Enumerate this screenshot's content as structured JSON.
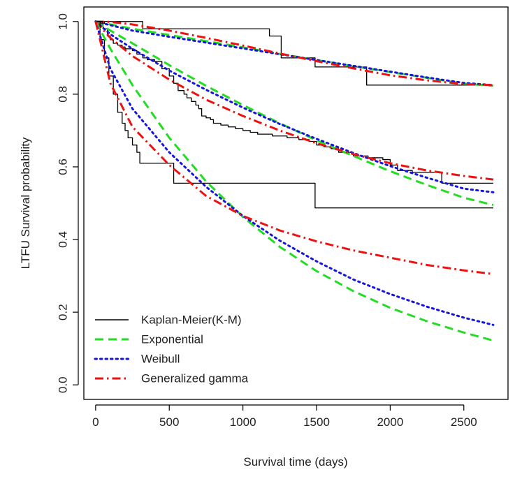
{
  "chart_data": {
    "type": "line",
    "title": "",
    "xlabel": "Survival time (days)",
    "ylabel": "LTFU Survival probability",
    "xlim": [
      -80,
      2800
    ],
    "ylim": [
      -0.04,
      1.04
    ],
    "x_ticks": [
      0,
      500,
      1000,
      1500,
      2000,
      2500
    ],
    "x_tick_labels": [
      "0",
      "500",
      "1000",
      "1500",
      "2000",
      "2500"
    ],
    "y_ticks": [
      0.0,
      0.2,
      0.4,
      0.6,
      0.8,
      1.0
    ],
    "y_tick_labels": [
      "0.0",
      "0.2",
      "0.4",
      "0.6",
      "0.8",
      "1.0"
    ],
    "grid": false,
    "legend_position": "bottom-left",
    "legend": [
      {
        "label": "Kaplan-Meier(K-M)",
        "style": "solid",
        "color": "#000000"
      },
      {
        "label": "Exponential",
        "style": "dashed",
        "color": "#22dd22"
      },
      {
        "label": "Weibull",
        "style": "dotted",
        "color": "#1515dd"
      },
      {
        "label": "Generalized gamma",
        "style": "dashdot",
        "color": "#ee1111"
      }
    ],
    "series": [
      {
        "group": "top",
        "style": "km",
        "color": "#000000",
        "x": [
          0,
          20,
          40,
          60,
          300,
          320,
          1160,
          1180,
          1240,
          1260,
          1470,
          1490,
          1820,
          1840,
          2700
        ],
        "y": [
          1.0,
          0.995,
          0.995,
          1.0,
          1.0,
          0.98,
          0.98,
          0.96,
          0.96,
          0.9,
          0.9,
          0.875,
          0.875,
          0.825,
          0.825
        ]
      },
      {
        "group": "top",
        "style": "exponential",
        "color": "#22dd22",
        "x": [
          0,
          250,
          500,
          750,
          1000,
          1250,
          1500,
          1750,
          2000,
          2250,
          2500,
          2700
        ],
        "y": [
          1.0,
          0.98,
          0.963,
          0.946,
          0.929,
          0.911,
          0.894,
          0.877,
          0.861,
          0.845,
          0.829,
          0.823
        ]
      },
      {
        "group": "top",
        "style": "weibull",
        "color": "#1515dd",
        "x": [
          0,
          250,
          500,
          750,
          1000,
          1250,
          1500,
          1750,
          2000,
          2250,
          2500,
          2700
        ],
        "y": [
          1.0,
          0.975,
          0.958,
          0.942,
          0.926,
          0.91,
          0.894,
          0.878,
          0.862,
          0.846,
          0.831,
          0.825
        ]
      },
      {
        "group": "top",
        "style": "gengamma",
        "color": "#ee1111",
        "x": [
          0,
          100,
          250,
          500,
          750,
          1000,
          1250,
          1500,
          1750,
          2000,
          2250,
          2500,
          2700
        ],
        "y": [
          1.0,
          0.999,
          0.992,
          0.975,
          0.955,
          0.934,
          0.912,
          0.891,
          0.871,
          0.852,
          0.838,
          0.828,
          0.825
        ]
      },
      {
        "group": "middle",
        "style": "km",
        "color": "#000000",
        "x": [
          0,
          50,
          80,
          100,
          120,
          150,
          180,
          200,
          250,
          280,
          320,
          350,
          400,
          450,
          500,
          530,
          560,
          600,
          620,
          650,
          680,
          700,
          720,
          750,
          780,
          800,
          850,
          900,
          950,
          1000,
          1050,
          1100,
          1200,
          1300,
          1380,
          1450,
          1500,
          1550,
          1600,
          1650,
          1750,
          1850,
          1950,
          2000,
          2050,
          2150,
          2350,
          2700
        ],
        "y": [
          1.0,
          0.98,
          0.96,
          0.95,
          0.94,
          0.935,
          0.93,
          0.925,
          0.92,
          0.91,
          0.9,
          0.895,
          0.89,
          0.87,
          0.85,
          0.83,
          0.81,
          0.8,
          0.79,
          0.78,
          0.77,
          0.76,
          0.74,
          0.735,
          0.73,
          0.72,
          0.715,
          0.71,
          0.705,
          0.7,
          0.695,
          0.69,
          0.685,
          0.68,
          0.675,
          0.67,
          0.66,
          0.655,
          0.65,
          0.64,
          0.63,
          0.625,
          0.62,
          0.605,
          0.59,
          0.585,
          0.555,
          0.555
        ]
      },
      {
        "group": "middle",
        "style": "exponential",
        "color": "#22dd22",
        "x": [
          0,
          100,
          250,
          500,
          750,
          1000,
          1250,
          1500,
          1750,
          2000,
          2250,
          2500,
          2700
        ],
        "y": [
          1.0,
          0.975,
          0.94,
          0.88,
          0.823,
          0.77,
          0.72,
          0.673,
          0.63,
          0.588,
          0.55,
          0.515,
          0.495
        ]
      },
      {
        "group": "middle",
        "style": "weibull",
        "color": "#1515dd",
        "x": [
          0,
          100,
          250,
          500,
          750,
          1000,
          1250,
          1500,
          1750,
          2000,
          2250,
          2500,
          2700
        ],
        "y": [
          1.0,
          0.965,
          0.925,
          0.865,
          0.812,
          0.763,
          0.718,
          0.677,
          0.638,
          0.602,
          0.57,
          0.54,
          0.53
        ]
      },
      {
        "group": "middle",
        "style": "gengamma",
        "color": "#ee1111",
        "x": [
          0,
          100,
          250,
          500,
          750,
          1000,
          1250,
          1500,
          1750,
          2000,
          2250,
          2500,
          2700
        ],
        "y": [
          1.0,
          0.955,
          0.905,
          0.84,
          0.785,
          0.74,
          0.7,
          0.665,
          0.635,
          0.61,
          0.59,
          0.575,
          0.565
        ]
      },
      {
        "group": "bottom",
        "style": "km",
        "color": "#000000",
        "x": [
          0,
          30,
          60,
          90,
          120,
          150,
          180,
          200,
          220,
          250,
          280,
          300,
          530,
          1490,
          2700
        ],
        "y": [
          1.0,
          0.95,
          0.9,
          0.85,
          0.8,
          0.75,
          0.72,
          0.7,
          0.68,
          0.66,
          0.64,
          0.61,
          0.555,
          0.487,
          0.487
        ]
      },
      {
        "group": "bottom",
        "style": "exponential",
        "color": "#22dd22",
        "x": [
          0,
          100,
          250,
          500,
          750,
          1000,
          1250,
          1500,
          1750,
          2000,
          2250,
          2500,
          2700
        ],
        "y": [
          1.0,
          0.925,
          0.825,
          0.68,
          0.56,
          0.462,
          0.38,
          0.313,
          0.258,
          0.212,
          0.175,
          0.144,
          0.122
        ]
      },
      {
        "group": "bottom",
        "style": "weibull",
        "color": "#1515dd",
        "x": [
          0,
          100,
          250,
          500,
          750,
          1000,
          1250,
          1500,
          1750,
          2000,
          2250,
          2500,
          2700
        ],
        "y": [
          1.0,
          0.87,
          0.76,
          0.64,
          0.545,
          0.465,
          0.397,
          0.34,
          0.29,
          0.25,
          0.215,
          0.185,
          0.165
        ]
      },
      {
        "group": "bottom",
        "style": "gengamma",
        "color": "#ee1111",
        "x": [
          0,
          100,
          250,
          500,
          750,
          1000,
          1250,
          1500,
          1750,
          2000,
          2250,
          2500,
          2700
        ],
        "y": [
          1.0,
          0.83,
          0.71,
          0.605,
          0.52,
          0.465,
          0.425,
          0.395,
          0.37,
          0.35,
          0.33,
          0.315,
          0.305
        ]
      }
    ]
  }
}
